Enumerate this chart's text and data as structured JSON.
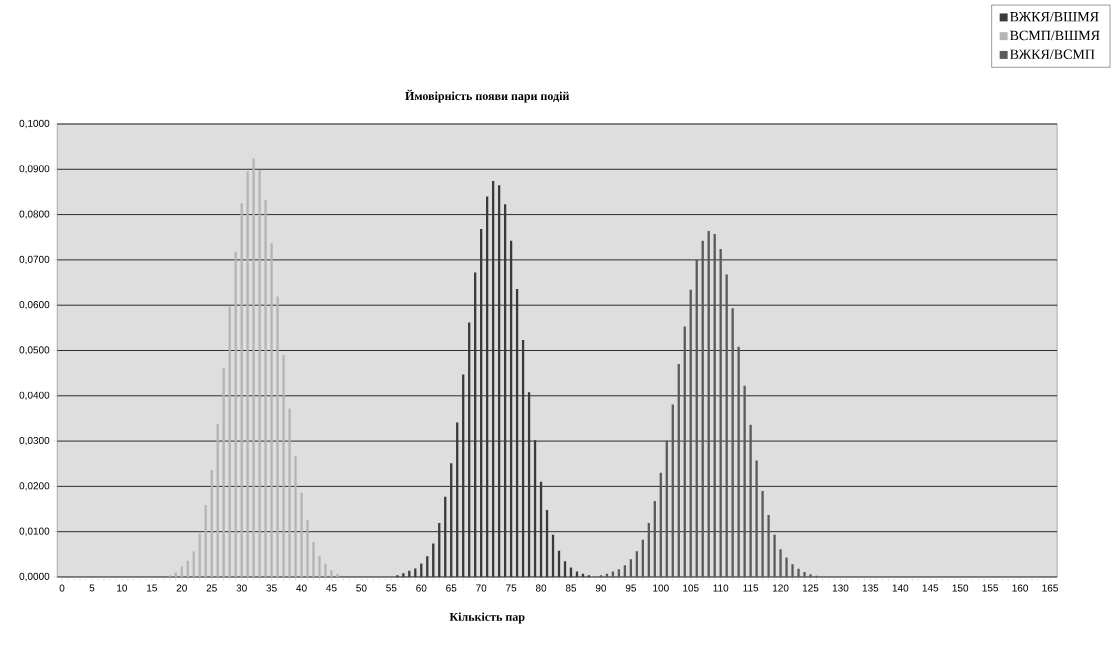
{
  "chart_data": {
    "type": "bar",
    "title": "Ймовірність появи пари подій",
    "xlabel": "Кількість пар",
    "categories": [
      "0",
      null,
      null,
      null,
      null,
      "5",
      null,
      null,
      null,
      null,
      "10",
      null,
      null,
      null,
      null,
      "15",
      null,
      null,
      null,
      null,
      "20",
      null,
      null,
      null,
      null,
      "25",
      null,
      null,
      null,
      null,
      "30",
      null,
      null,
      null,
      null,
      "35",
      null,
      null,
      null,
      null,
      "40",
      null,
      null,
      null,
      null,
      "45",
      null,
      null,
      null,
      null,
      "50",
      null,
      null,
      null,
      null,
      "55",
      null,
      null,
      null,
      null,
      "60",
      null,
      null,
      null,
      null,
      "65",
      null,
      null,
      null,
      null,
      "70",
      null,
      null,
      null,
      null,
      "75",
      null,
      null,
      null,
      null,
      "80",
      null,
      null,
      null,
      null,
      "85",
      null,
      null,
      null,
      null,
      "90",
      null,
      null,
      null,
      null,
      "95",
      null,
      null,
      null,
      null,
      "100",
      null,
      null,
      null,
      null,
      "105",
      null,
      null,
      null,
      null,
      "110",
      null,
      null,
      null,
      null,
      "115",
      null,
      null,
      null,
      null,
      "120",
      null,
      null,
      null,
      null,
      "125",
      null,
      null,
      null,
      null,
      "130",
      null,
      null,
      null,
      null,
      "135",
      null,
      null,
      null,
      null,
      "140",
      null,
      null,
      null,
      null,
      "145",
      null,
      null,
      null,
      null,
      "150",
      null,
      null,
      null,
      null,
      "155",
      null,
      null,
      null,
      null,
      "160",
      null,
      null,
      null,
      null,
      "165"
    ],
    "series": [
      {
        "name": "ВЖКЯ/ВШМЯ",
        "color": "#3a3a3a",
        "values": [
          null,
          null,
          null,
          null,
          null,
          null,
          null,
          null,
          null,
          null,
          null,
          null,
          null,
          null,
          null,
          null,
          null,
          null,
          null,
          null,
          null,
          null,
          null,
          null,
          null,
          null,
          null,
          null,
          null,
          null,
          null,
          null,
          null,
          null,
          null,
          null,
          null,
          null,
          null,
          null,
          null,
          null,
          null,
          null,
          null,
          null,
          null,
          null,
          null,
          null,
          null,
          null,
          null,
          null,
          null,
          null,
          0.0004,
          0.0008,
          0.0014,
          0.0019,
          0.003,
          0.0046,
          0.0074,
          0.0119,
          0.0177,
          0.0251,
          0.0341,
          0.0447,
          0.0562,
          0.0672,
          0.0768,
          0.084,
          0.0874,
          0.0865,
          0.0823,
          0.0742,
          0.0636,
          0.0523,
          0.0408,
          0.0302,
          0.021,
          0.0148,
          0.0093,
          0.0058,
          0.0035,
          0.0021,
          0.0012,
          0.0007,
          0.0004,
          null,
          null,
          null,
          null,
          null,
          null,
          null,
          null,
          null,
          null,
          null,
          null,
          null,
          null,
          null,
          null,
          null,
          null,
          null,
          null,
          null,
          null,
          null,
          null,
          null,
          null,
          null,
          null,
          null,
          null,
          null,
          null,
          null,
          null,
          null,
          null,
          null,
          null,
          null,
          null,
          null,
          null,
          null,
          null,
          null,
          null,
          null,
          null,
          null,
          null,
          null,
          null,
          null,
          null,
          null,
          null,
          null,
          null,
          null,
          null,
          null,
          null,
          null,
          null,
          null,
          null,
          null,
          null,
          null,
          null,
          null,
          null,
          null,
          null,
          null,
          null,
          null
        ]
      },
      {
        "name": "ВСМП/ВШМЯ",
        "color": "#b4b4b4",
        "values": [
          null,
          null,
          null,
          null,
          null,
          null,
          null,
          null,
          null,
          null,
          null,
          null,
          null,
          null,
          null,
          null,
          null,
          null,
          0.0004,
          0.001,
          0.0023,
          0.0036,
          0.0056,
          0.0096,
          0.0159,
          0.0236,
          0.0338,
          0.0462,
          0.0597,
          0.0718,
          0.0825,
          0.0895,
          0.0924,
          0.0898,
          0.0832,
          0.0737,
          0.0619,
          0.049,
          0.0372,
          0.0267,
          0.0186,
          0.0126,
          0.0078,
          0.0046,
          0.0029,
          0.0015,
          0.0007,
          null,
          null,
          null,
          null,
          null,
          null,
          null,
          null,
          null,
          null,
          null,
          null,
          null,
          null,
          null,
          null,
          null,
          null,
          null,
          null,
          null,
          null,
          null,
          null,
          null,
          null,
          null,
          null,
          null,
          null,
          null,
          null,
          null,
          null,
          null,
          null,
          null,
          null,
          null,
          null,
          null,
          null,
          null,
          null,
          null,
          null,
          null,
          null,
          null,
          null,
          null,
          null,
          null,
          null,
          null,
          null,
          null,
          null,
          null,
          null,
          null,
          null,
          null,
          null,
          null,
          null,
          null,
          null,
          null,
          null,
          null,
          null,
          null,
          null,
          null,
          null,
          null,
          null,
          null,
          null,
          null,
          null,
          null,
          null,
          null,
          null,
          null,
          null,
          null,
          null,
          null,
          null,
          null,
          null,
          null,
          null,
          null,
          null,
          null,
          null,
          null,
          null,
          null,
          null,
          null,
          null,
          null,
          null,
          null,
          null,
          null,
          null,
          null,
          null,
          null,
          null,
          null,
          null,
          null
        ]
      },
      {
        "name": "ВЖКЯ/ВСМП",
        "color": "#5a5a5a",
        "values": [
          null,
          null,
          null,
          null,
          null,
          null,
          null,
          null,
          null,
          null,
          null,
          null,
          null,
          null,
          null,
          null,
          null,
          null,
          null,
          null,
          null,
          null,
          null,
          null,
          null,
          null,
          null,
          null,
          null,
          null,
          null,
          null,
          null,
          null,
          null,
          null,
          null,
          null,
          null,
          null,
          null,
          null,
          null,
          null,
          null,
          null,
          null,
          null,
          null,
          null,
          null,
          null,
          null,
          null,
          null,
          null,
          null,
          null,
          null,
          null,
          null,
          null,
          null,
          null,
          null,
          null,
          null,
          null,
          null,
          null,
          null,
          null,
          null,
          null,
          null,
          null,
          null,
          null,
          null,
          null,
          null,
          null,
          null,
          null,
          null,
          null,
          null,
          null,
          null,
          null,
          0.0004,
          0.0007,
          0.0012,
          0.0017,
          0.0026,
          0.0039,
          0.0057,
          0.0082,
          0.0119,
          0.0168,
          0.023,
          0.0301,
          0.0381,
          0.047,
          0.0553,
          0.0634,
          0.07,
          0.0742,
          0.0764,
          0.0757,
          0.0724,
          0.0668,
          0.0593,
          0.0508,
          0.0422,
          0.0336,
          0.0257,
          0.019,
          0.0137,
          0.0093,
          0.0061,
          0.0043,
          0.0028,
          0.0018,
          0.0011,
          0.0006,
          0.0003,
          null,
          null,
          null,
          null,
          null,
          null,
          null,
          null,
          null,
          null,
          null,
          null,
          null,
          null,
          null,
          null,
          null,
          null,
          null,
          null,
          null,
          null,
          null,
          null,
          null,
          null,
          null,
          null,
          null,
          null,
          null,
          null,
          null,
          null,
          null,
          null,
          null,
          null,
          null
        ]
      }
    ],
    "ylim": [
      0,
      0.1
    ],
    "yticks": [
      {
        "value": 0,
        "label": "0,0000"
      },
      {
        "value": 0.01,
        "label": "0,0100"
      },
      {
        "value": 0.02,
        "label": "0,0200"
      },
      {
        "value": 0.03,
        "label": "0,0300"
      },
      {
        "value": 0.04,
        "label": "0,0400"
      },
      {
        "value": 0.05,
        "label": "0,0500"
      },
      {
        "value": 0.06,
        "label": "0,0600"
      },
      {
        "value": 0.07,
        "label": "0,0700"
      },
      {
        "value": 0.08,
        "label": "0,0800"
      },
      {
        "value": 0.09,
        "label": "0,0900"
      },
      {
        "value": 0.1,
        "label": "0,1000"
      }
    ],
    "grid": "y",
    "legend": "top right"
  }
}
